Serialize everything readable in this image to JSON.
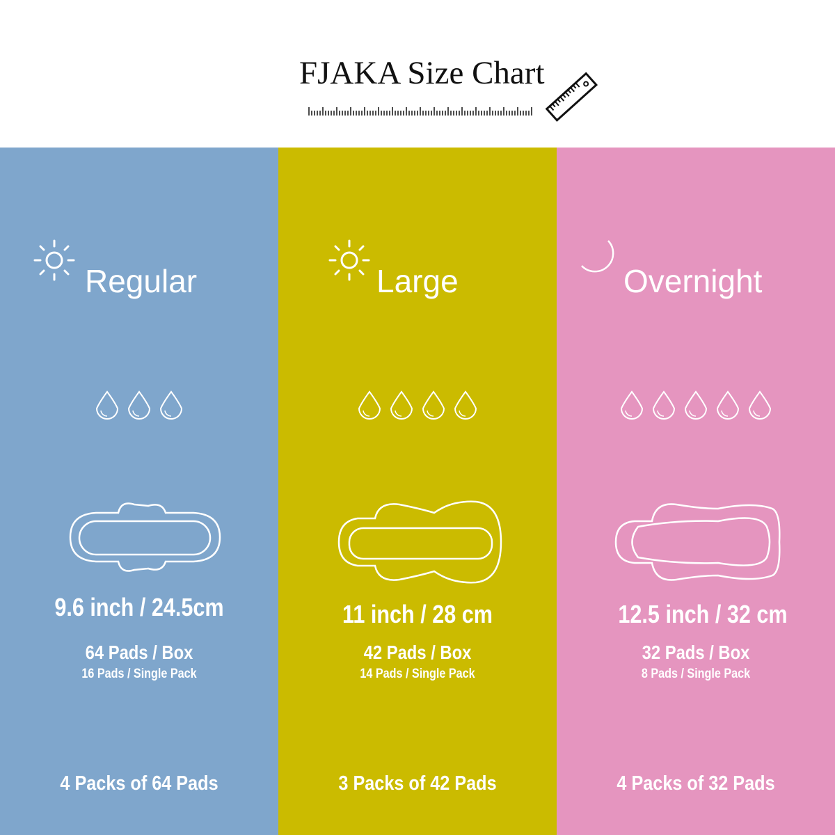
{
  "header": {
    "title": "FJAKA Size Chart",
    "icon": "ruler-icon"
  },
  "columns": [
    {
      "name": "Regular",
      "icon": "sun-icon",
      "color": "#7fa6cc",
      "drops": 3,
      "size": "9.6 inch / 24.5cm",
      "box": "64 Pads / Box",
      "single": "16 Pads / Single Pack",
      "packs": "4 Packs of 64 Pads"
    },
    {
      "name": "Large",
      "icon": "sun-icon",
      "color": "#cbbb00",
      "drops": 4,
      "size": "11 inch / 28 cm",
      "box": "42 Pads / Box",
      "single": "14 Pads / Single Pack",
      "packs": "3 Packs of 42 Pads"
    },
    {
      "name": "Overnight",
      "icon": "moon-icon",
      "color": "#e595bf",
      "drops": 5,
      "size": "12.5 inch / 32 cm",
      "box": "32 Pads / Box",
      "single": "8 Pads / Single Pack",
      "packs": "4 Packs of 32 Pads"
    }
  ]
}
